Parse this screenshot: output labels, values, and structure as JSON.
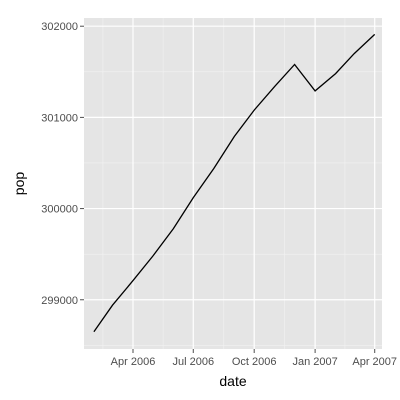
{
  "chart_data": {
    "type": "line",
    "xlabel": "date",
    "ylabel": "pop",
    "x_ticks": [
      {
        "date": "2006-04-01",
        "label": "Apr 2006"
      },
      {
        "date": "2006-07-01",
        "label": "Jul 2006"
      },
      {
        "date": "2006-10-01",
        "label": "Oct 2006"
      },
      {
        "date": "2007-01-01",
        "label": "Jan 2007"
      },
      {
        "date": "2007-04-01",
        "label": "Apr 2007"
      }
    ],
    "y_ticks": [
      {
        "value": 299000,
        "label": "299000"
      },
      {
        "value": 300000,
        "label": "300000"
      },
      {
        "value": 301000,
        "label": "301000"
      },
      {
        "value": 302000,
        "label": "302000"
      }
    ],
    "xlim": [
      "2006-01-17",
      "2007-04-12"
    ],
    "ylim": [
      298460,
      302090
    ],
    "grid": true,
    "colors": {
      "panel": "#e5e5e5",
      "grid": "#ffffff",
      "line": "#000000"
    },
    "series": [
      {
        "points": [
          {
            "x": "2006-02-01",
            "y": 298650
          },
          {
            "x": "2006-03-01",
            "y": 298940
          },
          {
            "x": "2006-04-01",
            "y": 299210
          },
          {
            "x": "2006-05-01",
            "y": 299480
          },
          {
            "x": "2006-06-01",
            "y": 299780
          },
          {
            "x": "2006-07-01",
            "y": 300120
          },
          {
            "x": "2006-08-01",
            "y": 300440
          },
          {
            "x": "2006-09-01",
            "y": 300790
          },
          {
            "x": "2006-10-01",
            "y": 301080
          },
          {
            "x": "2006-11-01",
            "y": 301340
          },
          {
            "x": "2006-12-01",
            "y": 301580
          },
          {
            "x": "2007-01-01",
            "y": 301290
          },
          {
            "x": "2007-02-01",
            "y": 301480
          },
          {
            "x": "2007-03-01",
            "y": 301700
          },
          {
            "x": "2007-04-01",
            "y": 301910
          }
        ]
      }
    ]
  }
}
